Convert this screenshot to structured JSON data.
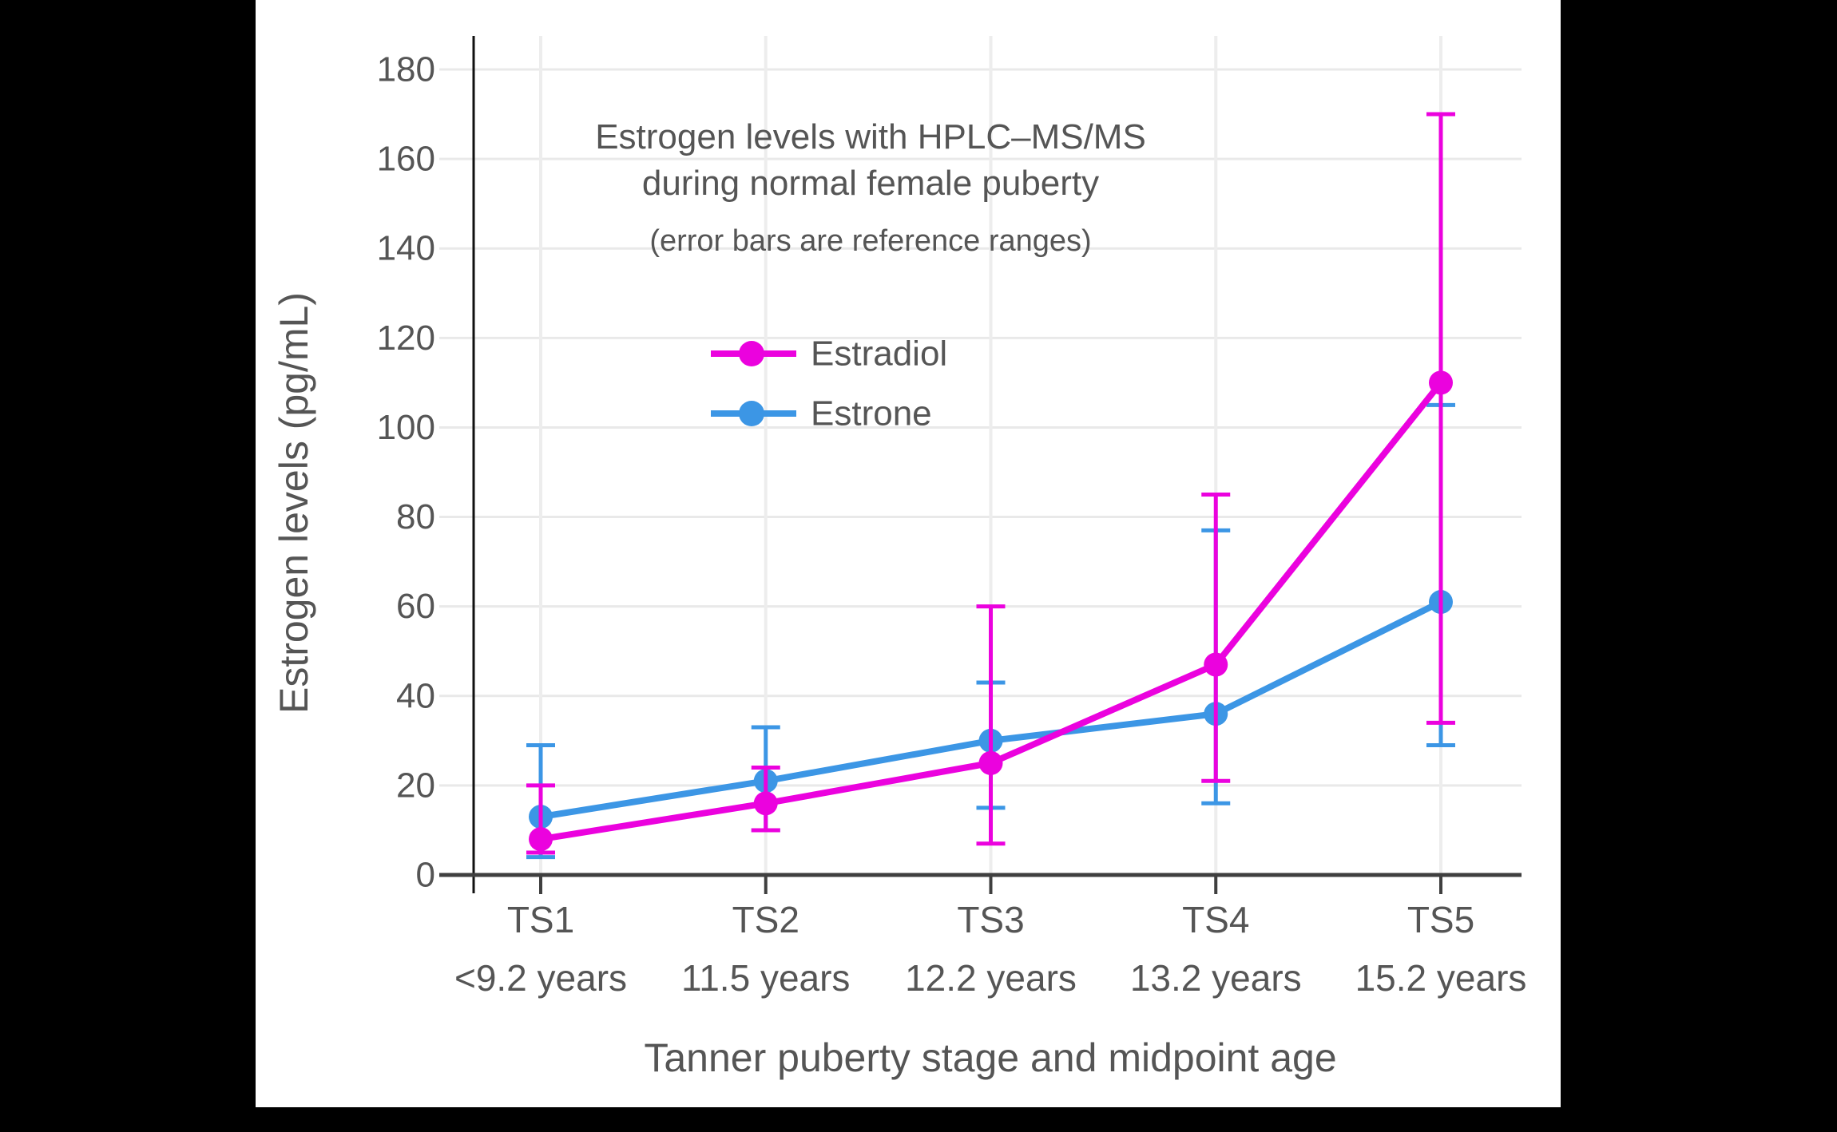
{
  "title": {
    "line1": "Estrogen levels with HPLC–MS/MS",
    "line2": "during normal female puberty",
    "subtitle": "(error bars are reference ranges)"
  },
  "style": {
    "text_color": "#555555",
    "grid_color": "#e9e9e9",
    "x_axis_color": "#3f3f3f",
    "y_axis_color": "#111111",
    "plot_bg": "#ffffff",
    "page_bg": "#000000"
  },
  "chart_data": {
    "type": "line",
    "title": "Estrogen levels with HPLC–MS/MS during normal female puberty",
    "subtitle": "(error bars are reference ranges)",
    "xlabel": "Tanner puberty stage and midpoint age",
    "ylabel": "Estrogen levels (pg/mL)",
    "ylim": [
      0,
      180
    ],
    "ytick_step": 20,
    "yticks": [
      0,
      20,
      40,
      60,
      80,
      100,
      120,
      140,
      160,
      180
    ],
    "grid": true,
    "legend_position": "upper-left-inside",
    "categories": [
      "TS1",
      "TS2",
      "TS3",
      "TS4",
      "TS5"
    ],
    "category_ages": [
      "<9.2 years",
      "11.5 years",
      "12.2 years",
      "13.2 years",
      "15.2 years"
    ],
    "series": [
      {
        "name": "Estradiol",
        "color": "#eb02de",
        "values": [
          8,
          16,
          25,
          47,
          110
        ],
        "err_low": [
          5,
          10,
          7,
          21,
          34
        ],
        "err_high": [
          20,
          24,
          60,
          85,
          170
        ]
      },
      {
        "name": "Estrone",
        "color": "#3c96e5",
        "values": [
          13,
          21,
          30,
          36,
          61
        ],
        "err_low": [
          4,
          10,
          15,
          16,
          29
        ],
        "err_high": [
          29,
          33,
          43,
          77,
          105
        ]
      }
    ]
  }
}
